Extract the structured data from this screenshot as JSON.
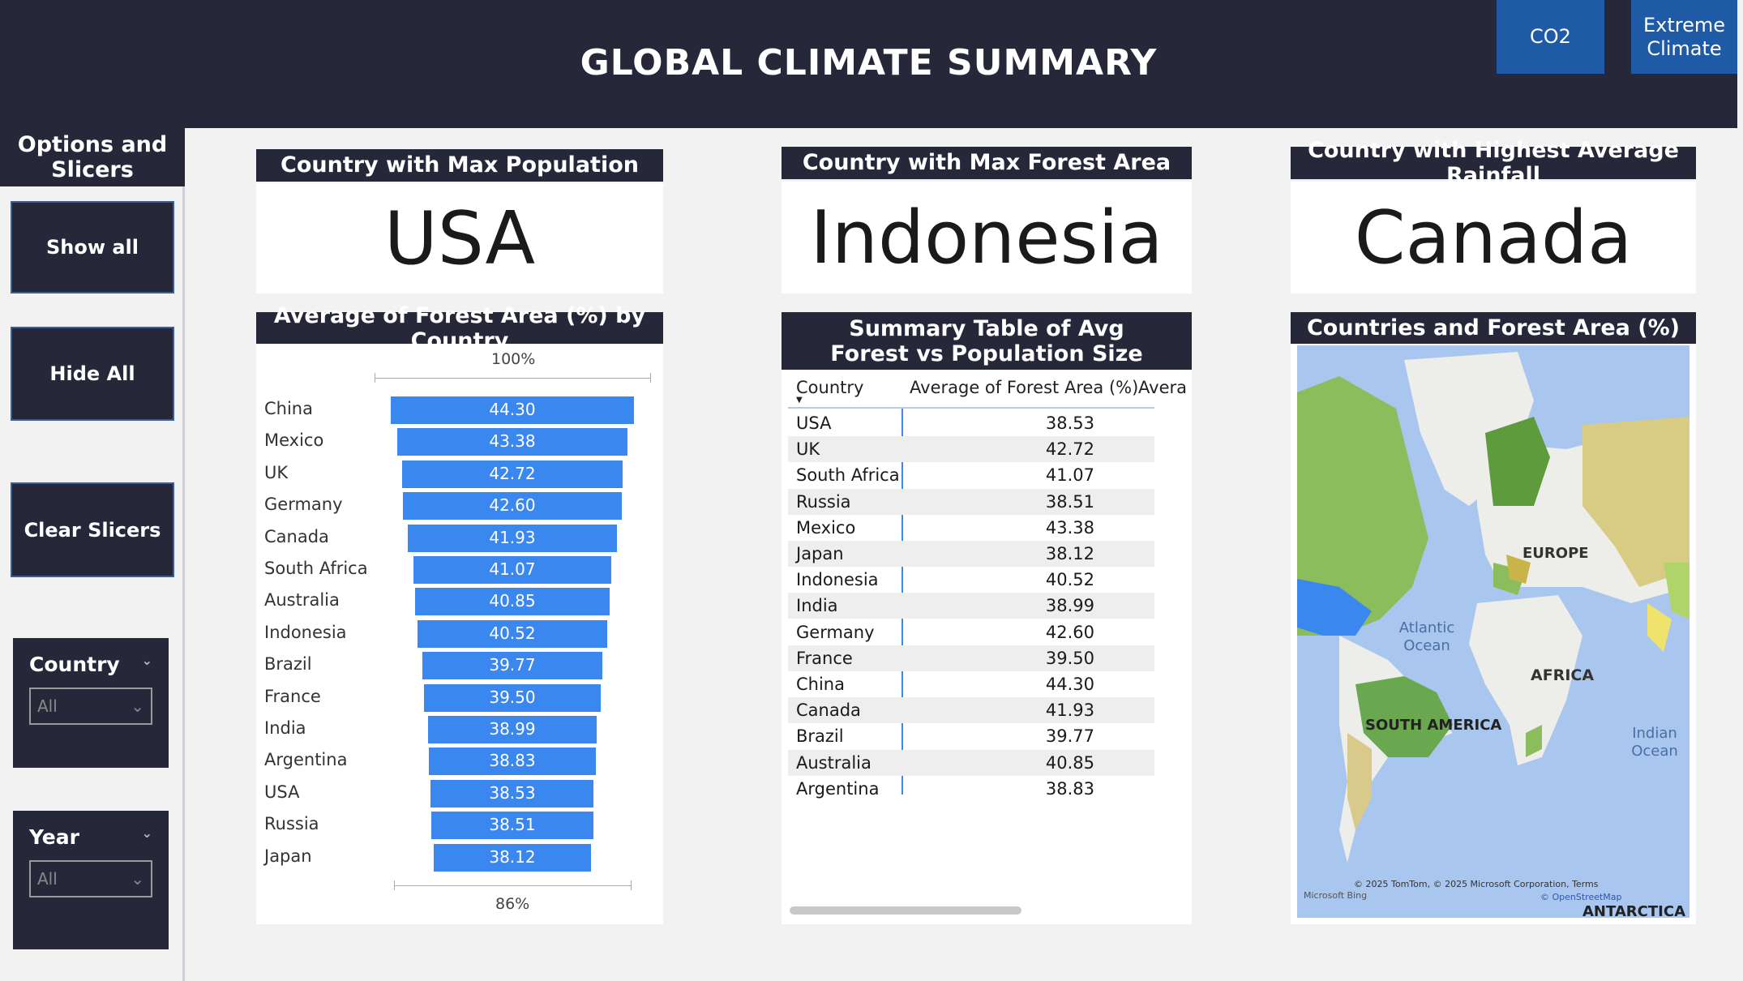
{
  "header": {
    "title": "GLOBAL CLIMATE SUMMARY",
    "nav_buttons": [
      "CO2",
      "Extreme Climate"
    ]
  },
  "sidebar": {
    "title": "Options and Slicers",
    "buttons": [
      "Show all",
      "Hide All",
      "Clear Slicers"
    ],
    "slicers": [
      {
        "label": "Country",
        "value": "All"
      },
      {
        "label": "Year",
        "value": "All"
      }
    ]
  },
  "kpis": [
    {
      "title": "Country with Max Population",
      "value": "USA"
    },
    {
      "title": "Country with Max Forest Area",
      "value": "Indonesia"
    },
    {
      "title": "Country with Highest Average Rainfall",
      "value": "Canada"
    }
  ],
  "bar_card": {
    "title": "Average of Forest Area (%) by Country",
    "axis_top": "100%",
    "axis_bottom": "86%"
  },
  "table_card": {
    "title": "Summary Table of Avg Forest vs Population Size",
    "columns": [
      "Country",
      "Average of Forest Area (%)",
      "Avera"
    ]
  },
  "map_card": {
    "title": "Countries and Forest Area (%)",
    "labels": {
      "europe": "EUROPE",
      "atlantic": "Atlantic Ocean",
      "africa": "AFRICA",
      "south_america": "SOUTH AMERICA",
      "indian": "Indian Ocean",
      "antarctica": "ANTARCTICA"
    },
    "copyright": "© 2025 TomTom, © 2025 Microsoft Corporation, Terms",
    "osm": "© OpenStreetMap",
    "bing": "Microsoft Bing"
  },
  "colors": {
    "header_bg": "#27273a",
    "nav_blue": "#1f5aa7",
    "bar_blue": "#3b87f0"
  },
  "chart_data": {
    "type": "bar",
    "title": "Average of Forest Area (%) by Country",
    "categories": [
      "China",
      "Mexico",
      "UK",
      "Germany",
      "Canada",
      "South Africa",
      "Australia",
      "Indonesia",
      "Brazil",
      "France",
      "India",
      "Argentina",
      "USA",
      "Russia",
      "Japan"
    ],
    "values": [
      44.3,
      43.38,
      42.72,
      42.6,
      41.93,
      41.07,
      40.85,
      40.52,
      39.77,
      39.5,
      38.99,
      38.83,
      38.53,
      38.51,
      38.12
    ],
    "labels": [
      "44.30",
      "43.38",
      "42.72",
      "42.60",
      "41.93",
      "41.07",
      "40.85",
      "40.52",
      "39.77",
      "39.50",
      "38.99",
      "38.83",
      "38.53",
      "38.51",
      "38.12"
    ]
  },
  "table_rows": [
    {
      "country": "USA",
      "value": "38.53"
    },
    {
      "country": "UK",
      "value": "42.72"
    },
    {
      "country": "South Africa",
      "value": "41.07"
    },
    {
      "country": "Russia",
      "value": "38.51"
    },
    {
      "country": "Mexico",
      "value": "43.38"
    },
    {
      "country": "Japan",
      "value": "38.12"
    },
    {
      "country": "Indonesia",
      "value": "40.52"
    },
    {
      "country": "India",
      "value": "38.99"
    },
    {
      "country": "Germany",
      "value": "42.60"
    },
    {
      "country": "France",
      "value": "39.50"
    },
    {
      "country": "China",
      "value": "44.30"
    },
    {
      "country": "Canada",
      "value": "41.93"
    },
    {
      "country": "Brazil",
      "value": "39.77"
    },
    {
      "country": "Australia",
      "value": "40.85"
    },
    {
      "country": "Argentina",
      "value": "38.83"
    }
  ]
}
